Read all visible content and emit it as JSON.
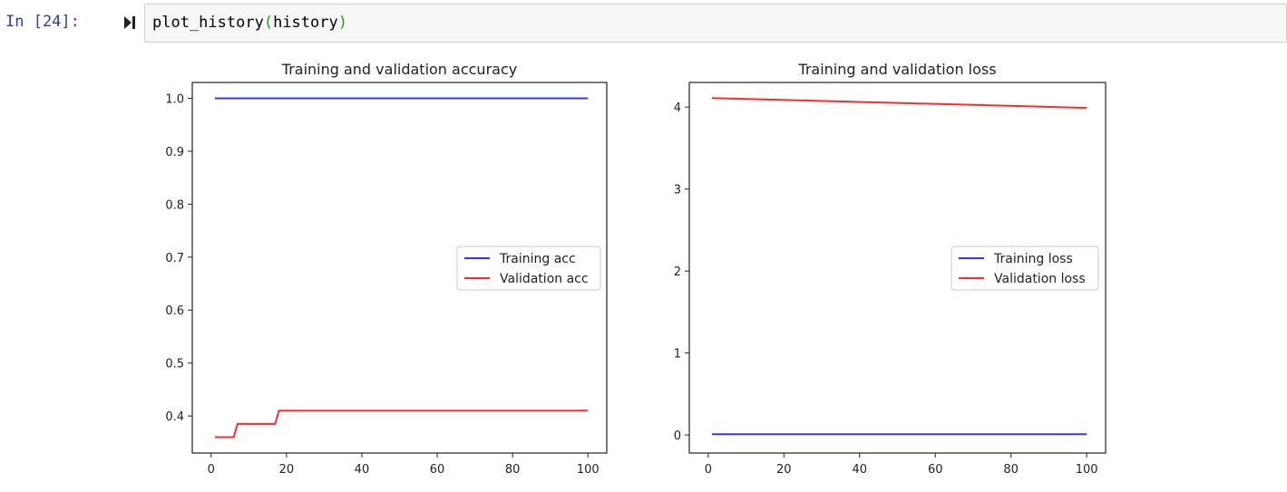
{
  "cell": {
    "prompt": "In [24]:",
    "code_func": "plot_history",
    "code_open": "(",
    "code_arg": "history",
    "code_close": ")",
    "run_icon": "run-cell-icon"
  },
  "chart_data": [
    {
      "type": "line",
      "title": "Training and validation accuracy",
      "xlabel": "",
      "ylabel": "",
      "xlim": [
        -5,
        105
      ],
      "ylim": [
        0.33,
        1.03
      ],
      "xticks": [
        0,
        20,
        40,
        60,
        80,
        100
      ],
      "yticks": [
        0.4,
        0.5,
        0.6,
        0.7,
        0.8,
        0.9,
        1.0
      ],
      "ytick_labels": [
        "0.4",
        "0.5",
        "0.6",
        "0.7",
        "0.8",
        "0.9",
        "1.0"
      ],
      "legend_position": "center-right",
      "grid": false,
      "series": [
        {
          "name": "Training acc",
          "color": "#3333ff",
          "x": [
            1,
            100
          ],
          "y": [
            1.0,
            1.0
          ]
        },
        {
          "name": "Validation acc",
          "color": "#ff2a2a",
          "x": [
            1,
            6,
            7,
            17,
            18,
            100
          ],
          "y": [
            0.36,
            0.36,
            0.385,
            0.385,
            0.41,
            0.41
          ]
        }
      ]
    },
    {
      "type": "line",
      "title": "Training and validation loss",
      "xlabel": "",
      "ylabel": "",
      "xlim": [
        -5,
        105
      ],
      "ylim": [
        -0.22,
        4.3
      ],
      "xticks": [
        0,
        20,
        40,
        60,
        80,
        100
      ],
      "yticks": [
        0,
        1,
        2,
        3,
        4
      ],
      "ytick_labels": [
        "0",
        "1",
        "2",
        "3",
        "4"
      ],
      "legend_position": "center-right",
      "grid": false,
      "series": [
        {
          "name": "Training loss",
          "color": "#3333ff",
          "x": [
            1,
            100
          ],
          "y": [
            0.01,
            0.01
          ]
        },
        {
          "name": "Validation loss",
          "color": "#ff2a2a",
          "x": [
            1,
            100
          ],
          "y": [
            4.11,
            3.99
          ]
        }
      ]
    }
  ]
}
